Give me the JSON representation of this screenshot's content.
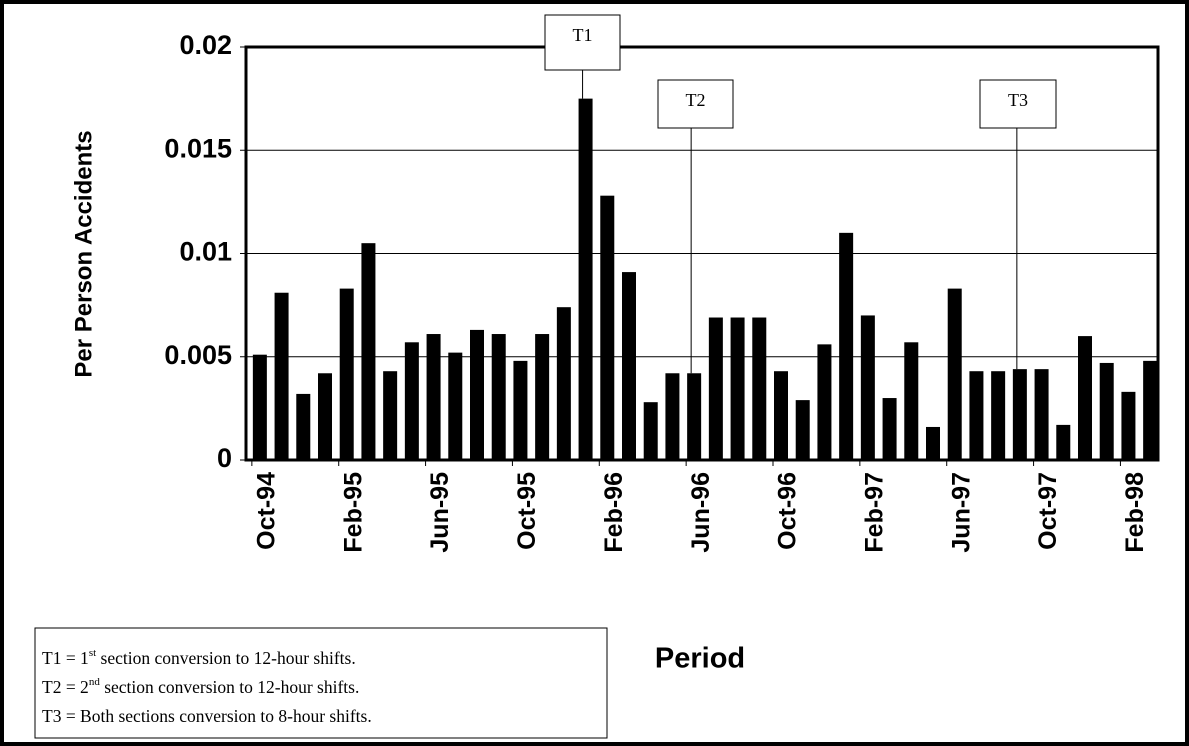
{
  "chart_data": {
    "type": "bar",
    "y_label": "Per Person Accidents",
    "x_label": "Period",
    "categories": [
      "Oct-94",
      null,
      null,
      null,
      "Feb-95",
      null,
      null,
      null,
      "Jun-95",
      null,
      null,
      null,
      "Oct-95",
      null,
      null,
      null,
      "Feb-96",
      null,
      null,
      null,
      "Jun-96",
      null,
      null,
      null,
      "Oct-96",
      null,
      null,
      null,
      "Feb-97",
      null,
      null,
      null,
      "Jun-97",
      null,
      null,
      null,
      "Oct-97",
      null,
      null,
      null,
      "Feb-98",
      null
    ],
    "values": [
      0.0051,
      0.0081,
      0.0032,
      0.0042,
      0.0083,
      0.0105,
      0.0043,
      0.0057,
      0.0061,
      0.0052,
      0.0063,
      0.0061,
      0.0048,
      0.0061,
      0.0074,
      0.0175,
      0.0128,
      0.0091,
      0.0028,
      0.0042,
      0.0042,
      0.0069,
      0.0069,
      0.0069,
      0.0043,
      0.0029,
      0.0056,
      0.011,
      0.007,
      0.003,
      0.0057,
      0.0016,
      0.0083,
      0.0043,
      0.0043,
      0.0044,
      0.0044,
      0.0017,
      0.006,
      0.0047,
      0.0033,
      0.0048
    ],
    "color": "#000000",
    "ylim": [
      0,
      0.02
    ],
    "yticks": [
      0,
      0.005,
      0.01,
      0.015,
      0.02
    ],
    "grid": true,
    "annotations": [
      "T1",
      "T2",
      "T3"
    ],
    "notes": [
      {
        "prefix": "T1 = 1",
        "sup": "st",
        "text": " section conversion to 12-hour shifts."
      },
      {
        "prefix": "T2 = 2",
        "sup": "nd",
        "text": " section conversion to 12-hour shifts."
      },
      {
        "prefix": "T3 = Both sections conversion to 8-hour shifts.",
        "sup": "",
        "text": ""
      }
    ]
  }
}
